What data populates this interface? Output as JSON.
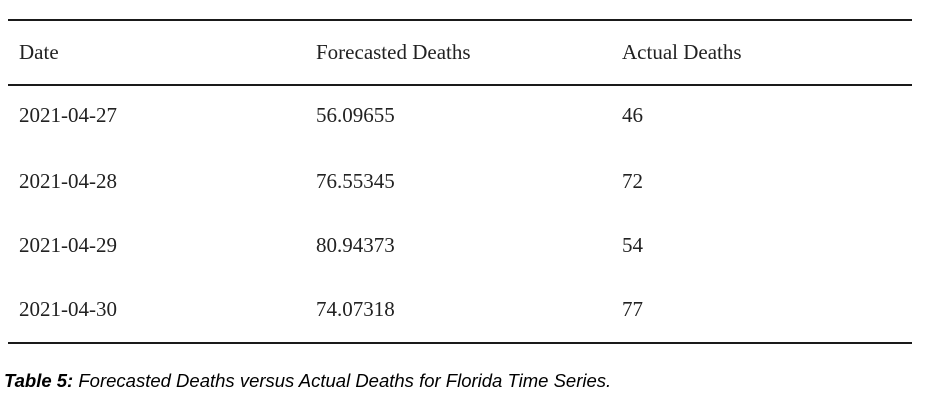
{
  "table": {
    "headers": {
      "date": "Date",
      "forecasted": "Forecasted Deaths",
      "actual": "Actual Deaths"
    },
    "rows": [
      {
        "date": "2021-04-27",
        "forecasted": "56.09655",
        "actual": "46"
      },
      {
        "date": "2021-04-28",
        "forecasted": "76.55345",
        "actual": "72"
      },
      {
        "date": "2021-04-29",
        "forecasted": "80.94373",
        "actual": "54"
      },
      {
        "date": "2021-04-30",
        "forecasted": "74.07318",
        "actual": "77"
      }
    ]
  },
  "caption": {
    "label": "Table 5:",
    "text": " Forecasted Deaths versus Actual Deaths for Florida Time Series."
  }
}
